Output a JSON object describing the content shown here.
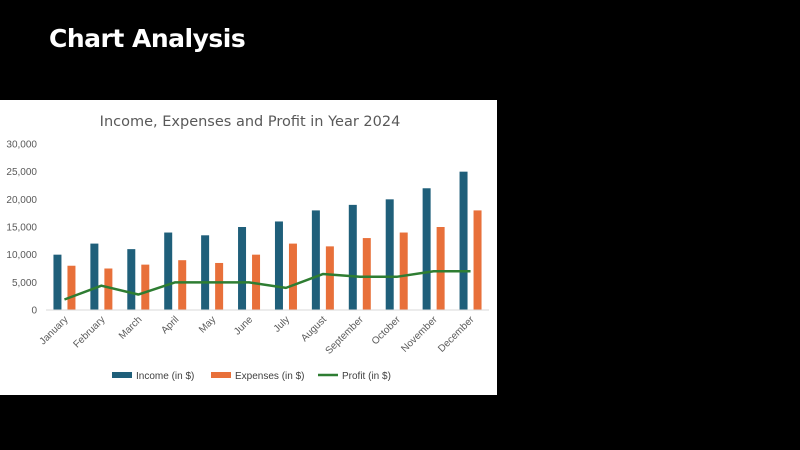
{
  "slide": {
    "title": "Chart Analysis"
  },
  "chart_data": {
    "type": "bar",
    "title": "Income, Expenses and Profit in Year 2024",
    "categories": [
      "January",
      "February",
      "March",
      "April",
      "May",
      "June",
      "July",
      "August",
      "September",
      "October",
      "November",
      "December"
    ],
    "series": [
      {
        "name": "Income (in $)",
        "type": "bar",
        "color": "#1f5f7a",
        "values": [
          10000,
          12000,
          11000,
          14000,
          13500,
          15000,
          16000,
          18000,
          19000,
          20000,
          22000,
          25000
        ]
      },
      {
        "name": "Expenses (in $)",
        "type": "bar",
        "color": "#e8703a",
        "values": [
          8000,
          7500,
          8200,
          9000,
          8500,
          10000,
          12000,
          11500,
          13000,
          14000,
          15000,
          18000
        ]
      },
      {
        "name": "Profit (in $)",
        "type": "line",
        "color": "#2e7d32",
        "values": [
          1900,
          4400,
          2800,
          5000,
          5000,
          5000,
          4000,
          6500,
          6000,
          6000,
          7000,
          7000
        ]
      }
    ],
    "ylim": [
      0,
      30000
    ],
    "yticks": [
      "0",
      "5,000",
      "10,000",
      "15,000",
      "20,000",
      "25,000",
      "30,000"
    ],
    "xlabel": "",
    "ylabel": "",
    "grid": false,
    "legend": "bottom"
  }
}
